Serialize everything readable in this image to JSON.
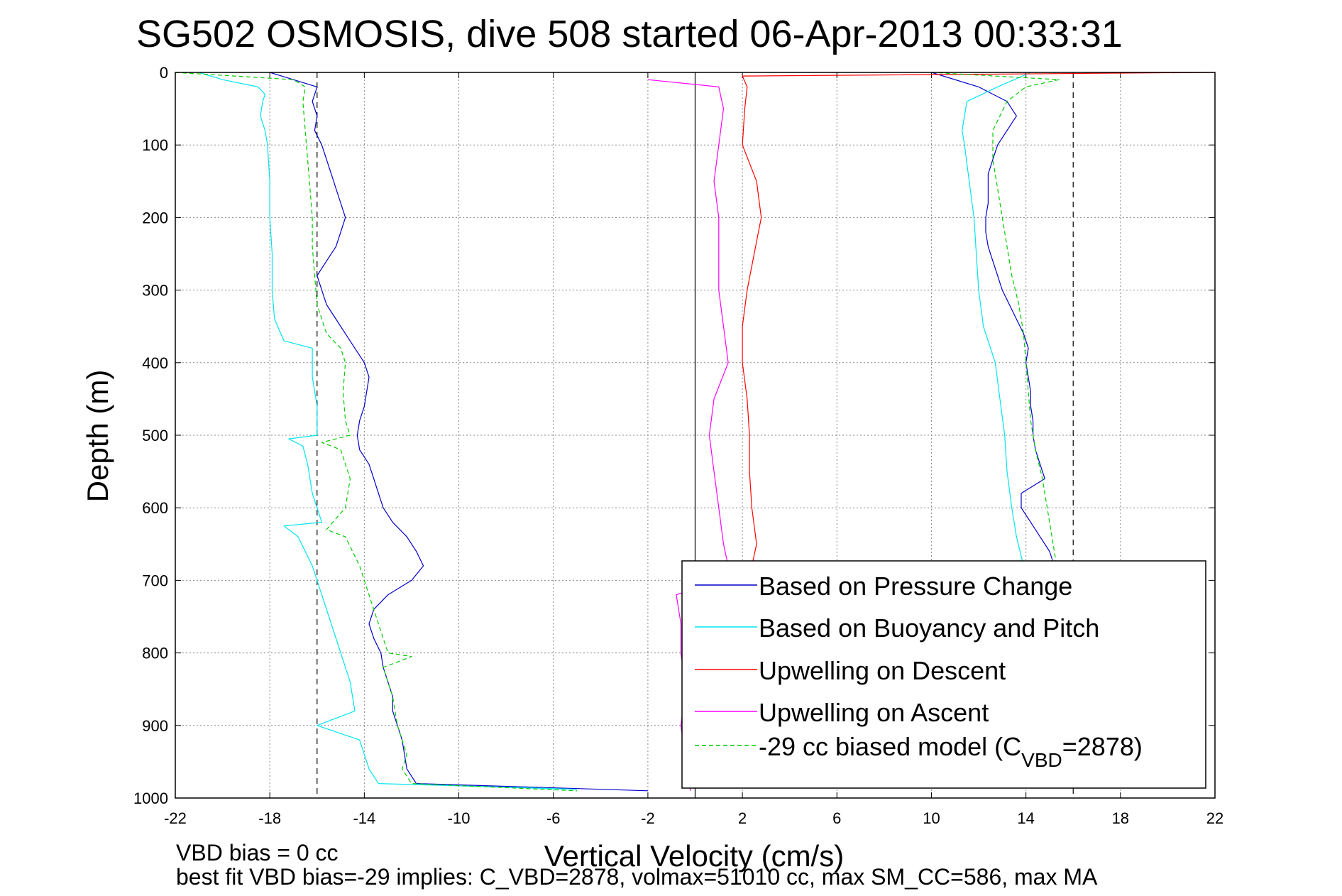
{
  "chart_data": {
    "type": "line",
    "title": "SG502 OSMOSIS, dive 508 started 06-Apr-2013 00:33:31",
    "xlabel": "Vertical Velocity (cm/s)",
    "ylabel": "Depth (m)",
    "xlim": [
      -22,
      22
    ],
    "ylim": [
      0,
      1000
    ],
    "y_reversed": true,
    "grid": true,
    "xticks": [
      "-22",
      "-18",
      "-14",
      "-10",
      "-6",
      "-2",
      "2",
      "6",
      "10",
      "14",
      "18",
      "22"
    ],
    "yticks": [
      "0",
      "100",
      "200",
      "300",
      "400",
      "500",
      "600",
      "700",
      "800",
      "900",
      "1000"
    ],
    "legend_position": "bottom-right",
    "legend": [
      {
        "text": "Based on Pressure Change",
        "color": "#0000cc",
        "style": "solid"
      },
      {
        "text": "Based on Buoyancy and Pitch",
        "color": "#00e5ee",
        "style": "solid"
      },
      {
        "text": "Upwelling on Descent",
        "color": "#ff0000",
        "style": "solid"
      },
      {
        "text": "Upwelling on Ascent",
        "color": "#ff00ff",
        "style": "solid"
      },
      {
        "text_pre": "-29 cc biased model (C",
        "text_sub": "VBD",
        "text_post": "=2878)",
        "color": "#00cc00",
        "style": "dashed"
      }
    ],
    "reference_lines": {
      "vertical_solid_x": 0,
      "vertical_dashed_x": [
        -16,
        16
      ]
    },
    "series": [
      {
        "key": "pressure_descent",
        "color": "#0000cc",
        "width": 1.2,
        "depth": [
          0,
          20,
          40,
          60,
          80,
          100,
          120,
          140,
          160,
          180,
          200,
          220,
          240,
          260,
          280,
          300,
          320,
          340,
          360,
          380,
          400,
          420,
          440,
          460,
          480,
          500,
          520,
          540,
          560,
          580,
          600,
          620,
          640,
          660,
          680,
          700,
          720,
          740,
          760,
          780,
          800,
          820,
          840,
          860,
          880,
          900,
          920,
          940,
          960,
          980,
          990
        ],
        "value": [
          -18,
          -16,
          -16.2,
          -16,
          -16.1,
          -15.8,
          -15.6,
          -15.4,
          -15.2,
          -15,
          -14.8,
          -15,
          -15.2,
          -15.6,
          -16,
          -15.8,
          -15.6,
          -15.2,
          -14.8,
          -14.4,
          -14,
          -13.8,
          -13.9,
          -14,
          -14.2,
          -14.3,
          -14.2,
          -13.8,
          -13.6,
          -13.4,
          -13.2,
          -12.8,
          -12.2,
          -11.8,
          -11.5,
          -12,
          -13,
          -13.6,
          -13.8,
          -13.6,
          -13.3,
          -13.2,
          -13,
          -12.8,
          -12.8,
          -12.6,
          -12.4,
          -12.3,
          -12.2,
          -11.8,
          -2
        ]
      },
      {
        "key": "pressure_ascent",
        "color": "#0000cc",
        "width": 1.2,
        "depth": [
          0,
          20,
          40,
          60,
          80,
          100,
          120,
          140,
          160,
          180,
          200,
          220,
          240,
          260,
          280,
          300,
          320,
          340,
          360,
          380,
          400,
          420,
          440,
          460,
          480,
          500,
          520,
          540,
          560,
          580,
          600,
          620,
          640,
          660,
          680
        ],
        "value": [
          10,
          12,
          13.2,
          13.6,
          13.2,
          12.8,
          12.6,
          12.4,
          12.4,
          12.4,
          12.3,
          12.3,
          12.4,
          12.6,
          12.8,
          13,
          13.3,
          13.6,
          13.9,
          14.1,
          14,
          14.1,
          14.2,
          14.2,
          14.3,
          14.3,
          14.4,
          14.6,
          14.8,
          13.8,
          13.8,
          14.2,
          14.6,
          15,
          15.2
        ]
      },
      {
        "key": "buoyancy_descent",
        "color": "#00e5ee",
        "width": 1.2,
        "depth": [
          0,
          10,
          20,
          30,
          40,
          60,
          80,
          100,
          150,
          200,
          250,
          300,
          340,
          370,
          380,
          420,
          460,
          500,
          505,
          515,
          540,
          580,
          620,
          625,
          640,
          680,
          720,
          760,
          800,
          840,
          880,
          900,
          920,
          960,
          980,
          988
        ],
        "value": [
          -21,
          -20,
          -18.5,
          -18.2,
          -18.3,
          -18.4,
          -18.2,
          -18.1,
          -18,
          -18,
          -17.9,
          -17.9,
          -17.8,
          -17.4,
          -16.2,
          -16.2,
          -16,
          -16,
          -17.2,
          -16.6,
          -16.4,
          -16.2,
          -15.8,
          -17.4,
          -16.8,
          -16.2,
          -15.8,
          -15.4,
          -15,
          -14.6,
          -14.4,
          -16,
          -14.2,
          -13.8,
          -13.4,
          -5
        ]
      },
      {
        "key": "buoyancy_ascent",
        "color": "#00e5ee",
        "width": 1.2,
        "depth": [
          0,
          20,
          40,
          60,
          80,
          100,
          150,
          200,
          250,
          300,
          350,
          380,
          400,
          450,
          500,
          550,
          600,
          640,
          680
        ],
        "value": [
          14.2,
          12.8,
          11.5,
          11.4,
          11.3,
          11.4,
          11.6,
          11.8,
          11.9,
          12,
          12.2,
          12.5,
          12.7,
          12.9,
          13.1,
          13.2,
          13.4,
          13.6,
          13.9
        ]
      },
      {
        "key": "upwelling_descent",
        "color": "#ff0000",
        "width": 1.2,
        "depth": [
          0,
          5,
          20,
          50,
          100,
          150,
          200,
          250,
          300,
          350,
          400,
          450,
          500,
          550,
          600,
          650,
          680,
          700
        ],
        "value": [
          22,
          2,
          2.2,
          2.1,
          2,
          2.6,
          2.8,
          2.5,
          2.2,
          2,
          2,
          2.2,
          2.3,
          2.3,
          2.4,
          2.6,
          2.4,
          2.3
        ]
      },
      {
        "key": "upwelling_ascent",
        "color": "#ff00ff",
        "width": 1.2,
        "depth": [
          10,
          20,
          50,
          100,
          150,
          200,
          250,
          300,
          350,
          400,
          450,
          500,
          550,
          600,
          650,
          680,
          700,
          720,
          760,
          800,
          850,
          900,
          950,
          990
        ],
        "value": [
          -2,
          1,
          1.2,
          1,
          0.8,
          1,
          1,
          1,
          1.2,
          1.4,
          0.8,
          0.6,
          0.8,
          1,
          1.2,
          1.4,
          1,
          -0.8,
          -0.6,
          -0.6,
          -0.4,
          -0.6,
          -0.4,
          -0.2
        ]
      },
      {
        "key": "model_descent",
        "color": "#00cc00",
        "width": 1.2,
        "dashed": true,
        "depth": [
          0,
          10,
          20,
          40,
          80,
          120,
          160,
          200,
          240,
          280,
          320,
          360,
          380,
          400,
          440,
          480,
          500,
          510,
          520,
          560,
          600,
          630,
          640,
          680,
          720,
          760,
          800,
          805,
          820,
          860,
          900,
          920,
          940,
          960,
          980,
          990
        ],
        "value": [
          -22,
          -17,
          -16.5,
          -16.6,
          -16.5,
          -16.4,
          -16.3,
          -16.2,
          -16.2,
          -16.1,
          -16,
          -15.6,
          -15,
          -14.8,
          -14.9,
          -14.8,
          -14.6,
          -15.8,
          -15,
          -14.6,
          -14.8,
          -15.6,
          -14.8,
          -14.2,
          -13.8,
          -13.4,
          -13,
          -12,
          -13.2,
          -12.8,
          -12.6,
          -12.4,
          -12.2,
          -12.4,
          -12,
          -5
        ]
      },
      {
        "key": "model_ascent",
        "color": "#00cc00",
        "width": 1.2,
        "dashed": true,
        "depth": [
          0,
          10,
          20,
          40,
          80,
          120,
          160,
          200,
          240,
          280,
          320,
          360,
          400,
          440,
          480,
          520,
          560,
          600,
          640,
          680
        ],
        "value": [
          10,
          15.4,
          14,
          13.2,
          12.6,
          12.6,
          12.8,
          13,
          13.2,
          13.4,
          13.7,
          13.9,
          14,
          14.1,
          14.2,
          14.4,
          14.7,
          14.9,
          15.1,
          15.3
        ]
      }
    ]
  },
  "footer": {
    "line1": "VBD bias = 0 cc",
    "line2": "best fit VBD bias=-29 implies: C_VBD=2878, volmax=51010 cc, max SM_CC=586, max MA"
  }
}
